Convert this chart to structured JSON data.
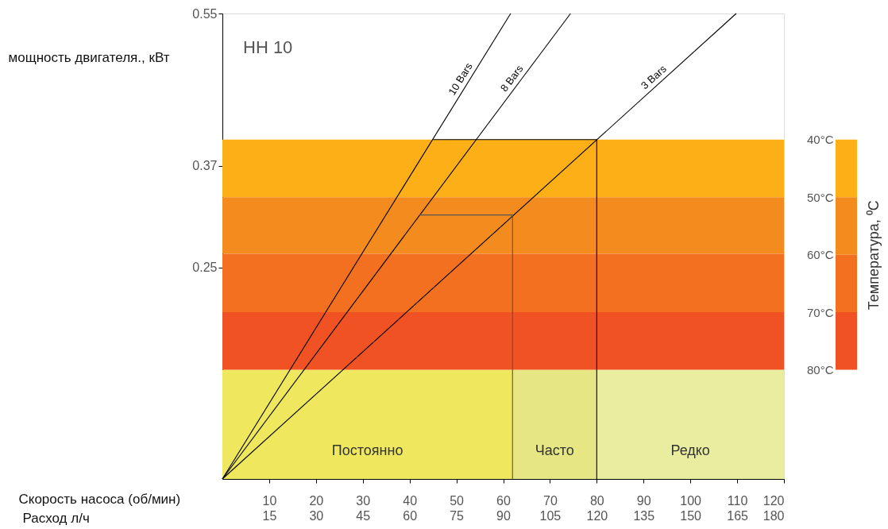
{
  "chart_data": {
    "type": "line",
    "title": "HH 10",
    "xlabel": "Скорость насоса (об/мин)",
    "ylabel": "мощность двигателя., кВт",
    "x2label": "Расход л/ч",
    "clabel": "Температура, ⁰C",
    "xlim": [
      0,
      120
    ],
    "xticks": [
      10,
      20,
      30,
      40,
      50,
      60,
      70,
      80,
      90,
      100,
      110,
      120
    ],
    "x2lim": [
      0,
      180
    ],
    "x2ticks": [
      15,
      30,
      45,
      60,
      75,
      90,
      105,
      120,
      135,
      150,
      165,
      180
    ],
    "ylim": [
      0,
      0.55
    ],
    "yticks": [
      0.25,
      0.37,
      0.55
    ],
    "series": [
      {
        "name": "10 Bars",
        "color": "#000000",
        "x": [
          0,
          61.6
        ],
        "values": [
          0,
          0.55
        ]
      },
      {
        "name": "8 Bars",
        "color": "#000000",
        "x": [
          0,
          74.4
        ],
        "values": [
          0,
          0.55
        ]
      },
      {
        "name": "3 Bars",
        "color": "#000000",
        "x": [
          0,
          109.8
        ],
        "values": [
          0,
          0.55
        ]
      },
      {
        "color": "#555555",
        "x": [
          42,
          62,
          62
        ],
        "values": [
          0.312,
          0.312,
          0
        ]
      },
      {
        "color": "#000000",
        "x": [
          45,
          80,
          80
        ],
        "values": [
          0.401,
          0.401,
          0
        ]
      }
    ],
    "bands": [
      {
        "axis": "y",
        "from": 0.333,
        "to": 0.401,
        "color": "#fcaf17"
      },
      {
        "axis": "y",
        "from": 0.266,
        "to": 0.333,
        "color": "#f48b1f"
      },
      {
        "axis": "y",
        "from": 0.197,
        "to": 0.266,
        "color": "#f37021"
      },
      {
        "axis": "y",
        "from": 0.129,
        "to": 0.197,
        "color": "#f05223"
      },
      {
        "axis": "x",
        "from": 0,
        "to": 62,
        "label": "Постоянно",
        "color": "#efe85e"
      },
      {
        "axis": "x",
        "from": 62,
        "to": 80,
        "label": "Часто",
        "color": "#e6e685"
      },
      {
        "axis": "x",
        "from": 80,
        "to": 120,
        "label": "Редко",
        "color": "#e9eda0"
      }
    ],
    "clim": [
      40,
      80
    ],
    "cticks": [
      {
        "value": 40,
        "label": "40°C"
      },
      {
        "value": 50,
        "label": "50°C"
      },
      {
        "value": 60,
        "label": "60°C"
      },
      {
        "value": 70,
        "label": "70°C"
      },
      {
        "value": 80,
        "label": "80°C"
      }
    ],
    "grid": false
  }
}
